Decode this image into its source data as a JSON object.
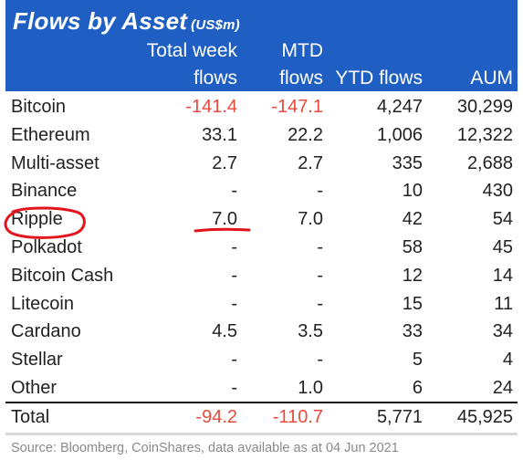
{
  "title": "Flows by Asset",
  "title_unit": "(US$m)",
  "columns": {
    "total_week_line1": "Total week",
    "total_week_line2": "flows",
    "mtd_line1": "MTD",
    "mtd_line2": "flows",
    "ytd": "YTD flows",
    "aum": "AUM"
  },
  "rows": [
    {
      "asset": "Bitcoin",
      "week": "-141.4",
      "mtd": "-147.1",
      "ytd": "4,247",
      "aum": "30,299"
    },
    {
      "asset": "Ethereum",
      "week": "33.1",
      "mtd": "22.2",
      "ytd": "1,006",
      "aum": "12,322"
    },
    {
      "asset": "Multi-asset",
      "week": "2.7",
      "mtd": "2.7",
      "ytd": "335",
      "aum": "2,688"
    },
    {
      "asset": "Binance",
      "week": "-",
      "mtd": "-",
      "ytd": "10",
      "aum": "430"
    },
    {
      "asset": "Ripple",
      "week": "7.0",
      "mtd": "7.0",
      "ytd": "42",
      "aum": "54"
    },
    {
      "asset": "Polkadot",
      "week": "-",
      "mtd": "-",
      "ytd": "58",
      "aum": "45"
    },
    {
      "asset": "Bitcoin Cash",
      "week": "-",
      "mtd": "-",
      "ytd": "12",
      "aum": "14"
    },
    {
      "asset": "Litecoin",
      "week": "-",
      "mtd": "-",
      "ytd": "15",
      "aum": "11"
    },
    {
      "asset": "Cardano",
      "week": "4.5",
      "mtd": "3.5",
      "ytd": "33",
      "aum": "34"
    },
    {
      "asset": "Stellar",
      "week": "-",
      "mtd": "-",
      "ytd": "5",
      "aum": "4"
    },
    {
      "asset": "Other",
      "week": "-",
      "mtd": "1.0",
      "ytd": "6",
      "aum": "24"
    }
  ],
  "total": {
    "asset": "Total",
    "week": "-94.2",
    "mtd": "-110.7",
    "ytd": "5,771",
    "aum": "45,925"
  },
  "source": "Source: Bloomberg, CoinShares, data available as at 04 Jun 2021",
  "colors": {
    "header_bg": "#1f5fc4",
    "negative": "#e84a3c",
    "annotation": "#e3141b"
  }
}
